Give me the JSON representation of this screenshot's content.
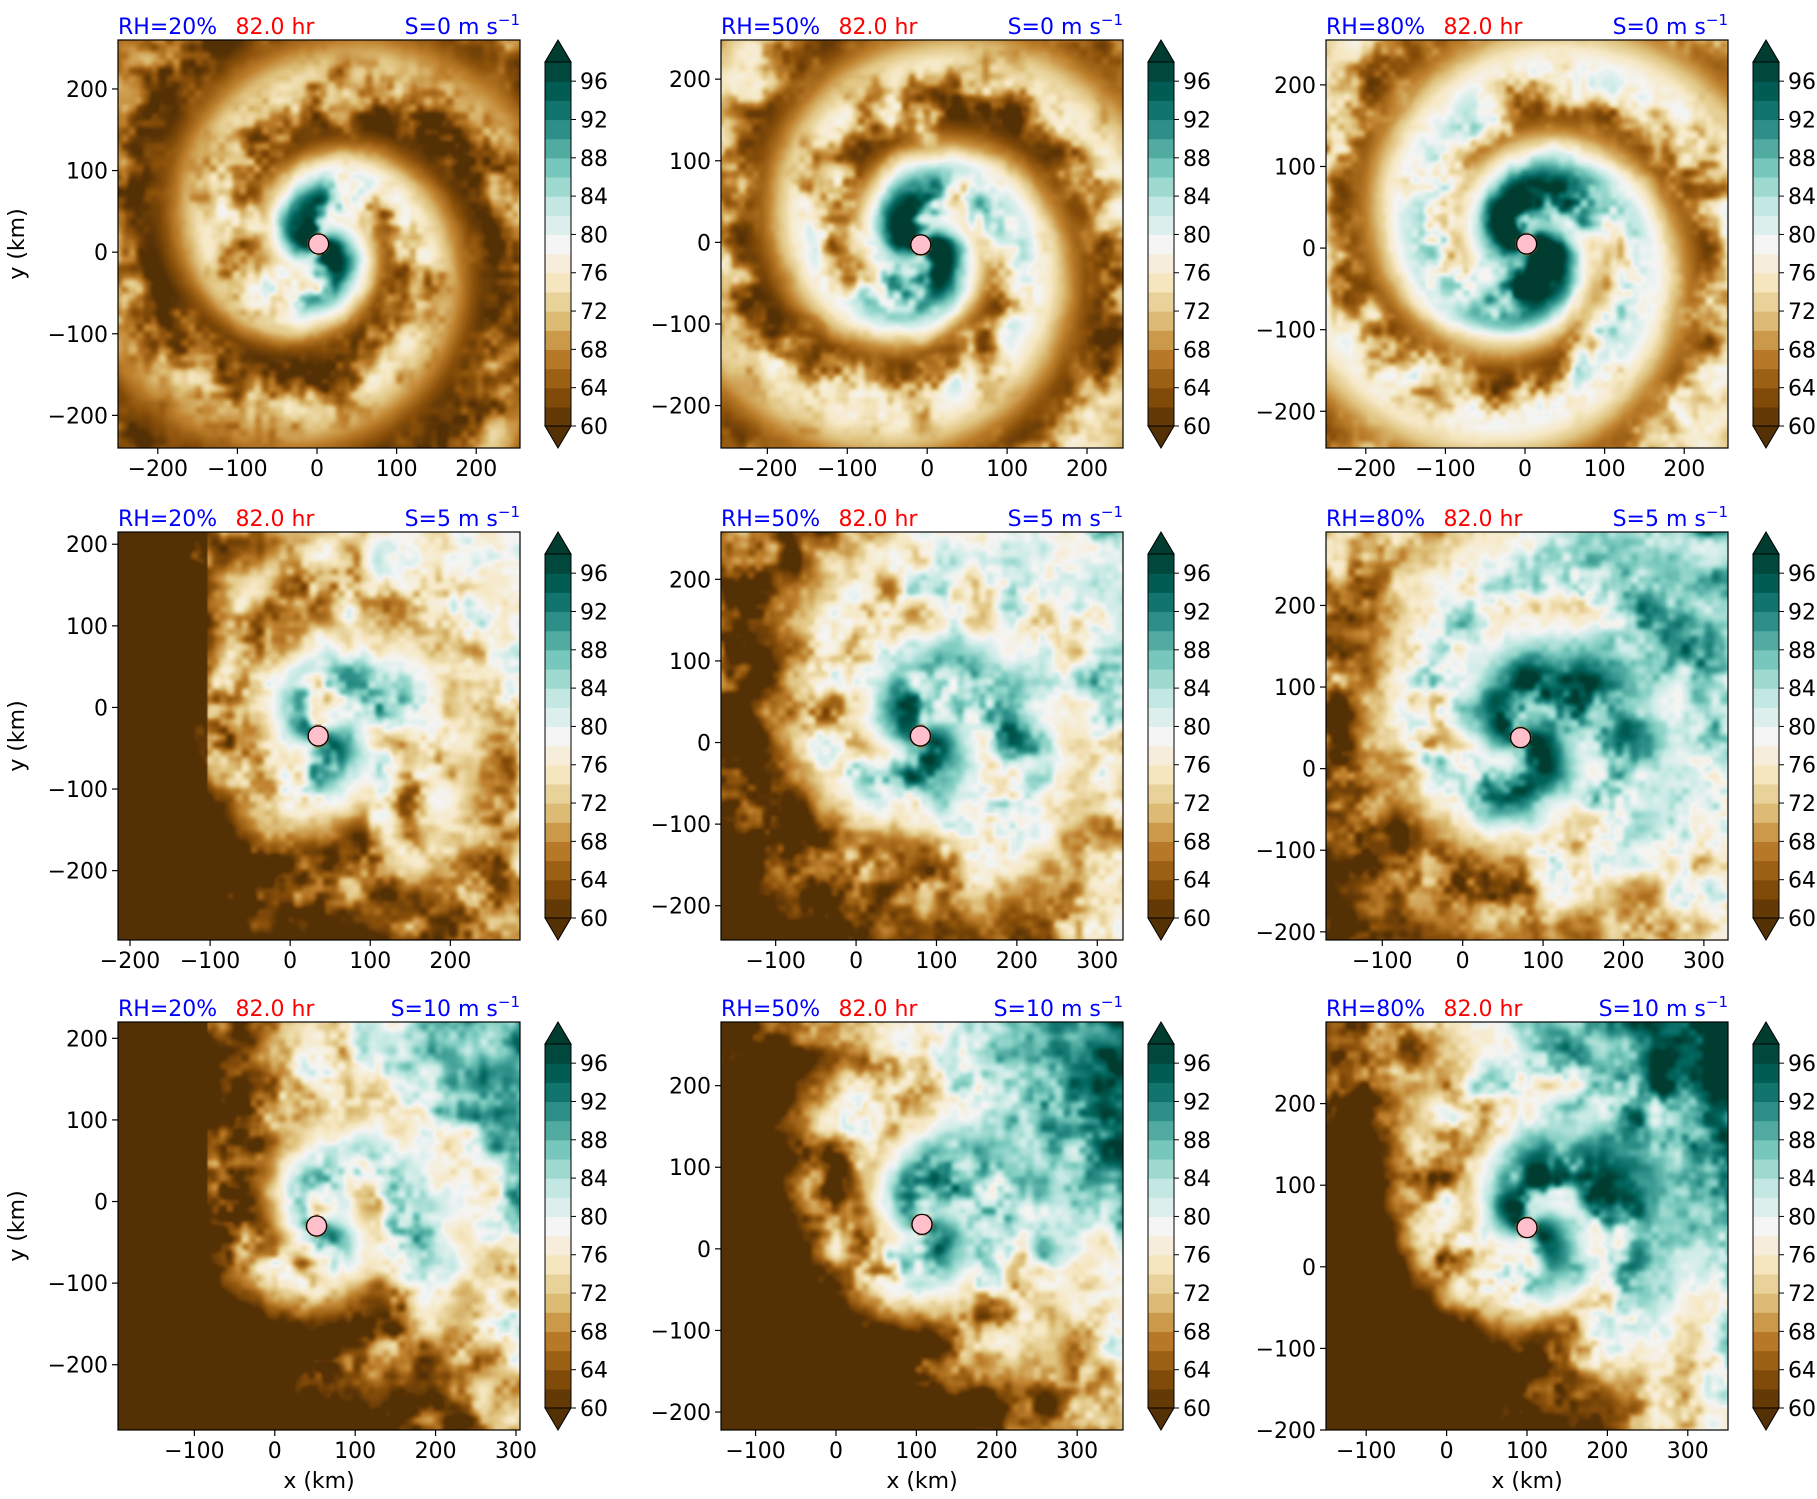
{
  "colors": {
    "label_blue": "#0000ff",
    "label_red": "#ff0000",
    "center_marker": "#ffc0cb",
    "colormap": [
      "#543005",
      "#8c510a",
      "#bf812d",
      "#dfc27d",
      "#f6e8c3",
      "#f5f5f5",
      "#c7eae5",
      "#80cdc1",
      "#35978f",
      "#01665e",
      "#003c30"
    ]
  },
  "chart_data": [
    {
      "type": "heatmap",
      "row": 0,
      "col": 0,
      "label_rh": "RH=20%",
      "label_time": "82.0 hr",
      "label_shear": "S=0 m s",
      "label_shear_exp": "−1",
      "xlim": [
        -250,
        255
      ],
      "ylim": [
        -240,
        260
      ],
      "xticks": [
        -200,
        -100,
        0,
        100,
        200
      ],
      "yticks": [
        -200,
        -100,
        0,
        100,
        200
      ],
      "xlabel": "",
      "ylabel": "y (km)",
      "center": [
        2,
        10
      ],
      "rh_pct": 20,
      "shear_ms": 0,
      "seed": 11
    },
    {
      "type": "heatmap",
      "row": 0,
      "col": 1,
      "label_rh": "RH=50%",
      "label_time": "82.0 hr",
      "label_shear": "S=0 m s",
      "label_shear_exp": "−1",
      "xlim": [
        -258,
        245
      ],
      "ylim": [
        -252,
        248
      ],
      "xticks": [
        -200,
        -100,
        0,
        100,
        200
      ],
      "yticks": [
        -200,
        -100,
        0,
        100,
        200
      ],
      "xlabel": "",
      "ylabel": "",
      "center": [
        -8,
        -3
      ],
      "rh_pct": 50,
      "shear_ms": 0,
      "seed": 23
    },
    {
      "type": "heatmap",
      "row": 0,
      "col": 2,
      "label_rh": "RH=80%",
      "label_time": "82.0 hr",
      "label_shear": "S=0 m s",
      "label_shear_exp": "−1",
      "xlim": [
        -250,
        255
      ],
      "ylim": [
        -245,
        255
      ],
      "xticks": [
        -200,
        -100,
        0,
        100,
        200
      ],
      "yticks": [
        -200,
        -100,
        0,
        100,
        200
      ],
      "xlabel": "",
      "ylabel": "",
      "center": [
        2,
        5
      ],
      "rh_pct": 80,
      "shear_ms": 0,
      "seed": 37
    },
    {
      "type": "heatmap",
      "row": 1,
      "col": 0,
      "label_rh": "RH=20%",
      "label_time": "82.0 hr",
      "label_shear": "S=5 m s",
      "label_shear_exp": "−1",
      "xlim": [
        -215,
        287
      ],
      "ylim": [
        -285,
        215
      ],
      "xticks": [
        -200,
        -100,
        0,
        100,
        200
      ],
      "yticks": [
        -200,
        -100,
        0,
        100,
        200
      ],
      "xlabel": "",
      "ylabel": "y (km)",
      "center": [
        35,
        -35
      ],
      "rh_pct": 20,
      "shear_ms": 5,
      "seed": 41
    },
    {
      "type": "heatmap",
      "row": 1,
      "col": 1,
      "label_rh": "RH=50%",
      "label_time": "82.0 hr",
      "label_shear": "S=5 m s",
      "label_shear_exp": "−1",
      "xlim": [
        -168,
        332
      ],
      "ylim": [
        -242,
        258
      ],
      "xticks": [
        -100,
        0,
        100,
        200,
        300
      ],
      "yticks": [
        -200,
        -100,
        0,
        100,
        200
      ],
      "xlabel": "",
      "ylabel": "",
      "center": [
        80,
        8
      ],
      "rh_pct": 50,
      "shear_ms": 5,
      "seed": 53
    },
    {
      "type": "heatmap",
      "row": 1,
      "col": 2,
      "label_rh": "RH=80%",
      "label_time": "82.0 hr",
      "label_shear": "S=5 m s",
      "label_shear_exp": "−1",
      "xlim": [
        -170,
        330
      ],
      "ylim": [
        -210,
        290
      ],
      "xticks": [
        -100,
        0,
        100,
        200,
        300
      ],
      "yticks": [
        -200,
        -100,
        0,
        100,
        200
      ],
      "xlabel": "",
      "ylabel": "",
      "center": [
        72,
        38
      ],
      "rh_pct": 80,
      "shear_ms": 5,
      "seed": 67
    },
    {
      "type": "heatmap",
      "row": 2,
      "col": 0,
      "label_rh": "RH=20%",
      "label_time": "82.0 hr",
      "label_shear": "S=10 m s",
      "label_shear_exp": "−1",
      "xlim": [
        -195,
        305
      ],
      "ylim": [
        -280,
        220
      ],
      "xticks": [
        -100,
        0,
        100,
        200,
        300
      ],
      "yticks": [
        -200,
        -100,
        0,
        100,
        200
      ],
      "xlabel": "x (km)",
      "ylabel": "y (km)",
      "center": [
        52,
        -30
      ],
      "rh_pct": 20,
      "shear_ms": 10,
      "seed": 79
    },
    {
      "type": "heatmap",
      "row": 2,
      "col": 1,
      "label_rh": "RH=50%",
      "label_time": "82.0 hr",
      "label_shear": "S=10 m s",
      "label_shear_exp": "−1",
      "xlim": [
        -143,
        357
      ],
      "ylim": [
        -222,
        278
      ],
      "xticks": [
        -100,
        0,
        100,
        200,
        300
      ],
      "yticks": [
        -200,
        -100,
        0,
        100,
        200
      ],
      "xlabel": "x (km)",
      "ylabel": "",
      "center": [
        107,
        30
      ],
      "rh_pct": 50,
      "shear_ms": 10,
      "seed": 83
    },
    {
      "type": "heatmap",
      "row": 2,
      "col": 2,
      "label_rh": "RH=80%",
      "label_time": "82.0 hr",
      "label_shear": "S=10 m s",
      "label_shear_exp": "−1",
      "xlim": [
        -150,
        350
      ],
      "ylim": [
        -200,
        300
      ],
      "xticks": [
        -100,
        0,
        100,
        200,
        300
      ],
      "yticks": [
        -200,
        -100,
        0,
        100,
        200
      ],
      "xlabel": "x (km)",
      "ylabel": "",
      "center": [
        100,
        48
      ],
      "rh_pct": 80,
      "shear_ms": 10,
      "seed": 97
    }
  ],
  "colorbar": {
    "levels": [
      60,
      62,
      64,
      66,
      68,
      70,
      72,
      74,
      76,
      78,
      80,
      82,
      84,
      86,
      88,
      90,
      92,
      94,
      96,
      98
    ],
    "ticks": [
      "60",
      "64",
      "68",
      "72",
      "76",
      "80",
      "84",
      "88",
      "92",
      "96"
    ],
    "extend": "both"
  }
}
